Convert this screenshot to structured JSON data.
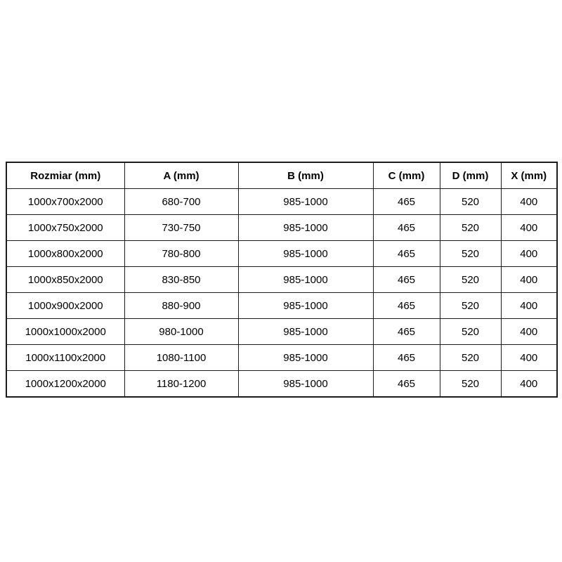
{
  "page": {
    "background_color": "#ffffff",
    "border_color": "#1c1c1c",
    "text_color": "#000000"
  },
  "chart_data": {
    "type": "table",
    "title": "",
    "columns": [
      "Rozmiar (mm)",
      "A (mm)",
      "B (mm)",
      "C (mm)",
      "D (mm)",
      "X (mm)"
    ],
    "rows": [
      [
        "1000x700x2000",
        "680-700",
        "985-1000",
        "465",
        "520",
        "400"
      ],
      [
        "1000x750x2000",
        "730-750",
        "985-1000",
        "465",
        "520",
        "400"
      ],
      [
        "1000x800x2000",
        "780-800",
        "985-1000",
        "465",
        "520",
        "400"
      ],
      [
        "1000x850x2000",
        "830-850",
        "985-1000",
        "465",
        "520",
        "400"
      ],
      [
        "1000x900x2000",
        "880-900",
        "985-1000",
        "465",
        "520",
        "400"
      ],
      [
        "1000x1000x2000",
        "980-1000",
        "985-1000",
        "465",
        "520",
        "400"
      ],
      [
        "1000x1100x2000",
        "1080-1100",
        "985-1000",
        "465",
        "520",
        "400"
      ],
      [
        "1000x1200x2000",
        "1180-1200",
        "985-1000",
        "465",
        "520",
        "400"
      ]
    ],
    "layout": {
      "grid": true,
      "header_row_bold": true,
      "cell_alignment": "center"
    }
  }
}
